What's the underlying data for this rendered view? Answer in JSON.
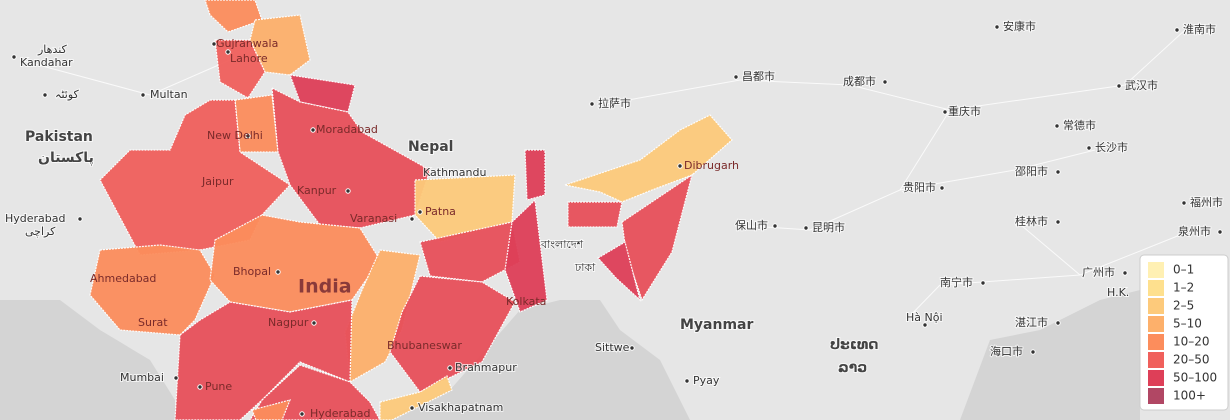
{
  "map": {
    "places": [
      "Kandahar",
      "کندهار",
      "کوئٹہ",
      "Multan",
      "Pakistan",
      "پاکستان",
      "Hyderabad",
      "کراچی",
      "Gujranwala",
      "Lahore",
      "New Delhi",
      "Moradabad",
      "Jaipur",
      "Kanpur",
      "Varanasi",
      "Patna",
      "Kathmandu",
      "Nepal",
      "Ahmedabad",
      "Bhopal",
      "India",
      "Surat",
      "Nagpur",
      "Mumbai",
      "Pune",
      "Hyderabad",
      "Kolkata",
      "Bhubaneswar",
      "Brahmapur",
      "Visakhapatnam",
      "বাংলাদেশ",
      "ঢাকা",
      "Sittwe",
      "Myanmar",
      "Pyay",
      "Dibrugarh",
      "拉萨市",
      "昌都市",
      "成都市",
      "重庆市",
      "贵阳市",
      "昆明市",
      "保山市",
      "南宁市",
      "Hà Nội",
      "ປະເທດ",
      "ລາວ",
      "安康市",
      "淮南市",
      "武汉市",
      "常德市",
      "长沙市",
      "邵阳市",
      "桂林市",
      "福州市",
      "泉州市",
      "广州市",
      "湛江市",
      "海口市",
      "H.K."
    ]
  },
  "legend": {
    "items": [
      {
        "label": "0–1",
        "color": "#fff0b3"
      },
      {
        "label": "1–2",
        "color": "#fee08e"
      },
      {
        "label": "2–5",
        "color": "#fdca7b"
      },
      {
        "label": "5–10",
        "color": "#fdb06b"
      },
      {
        "label": "10–20",
        "color": "#fc8d5c"
      },
      {
        "label": "20–50",
        "color": "#f0605c"
      },
      {
        "label": "50–100",
        "color": "#de3f58"
      },
      {
        "label": "100+",
        "color": "#b14764"
      }
    ]
  }
}
